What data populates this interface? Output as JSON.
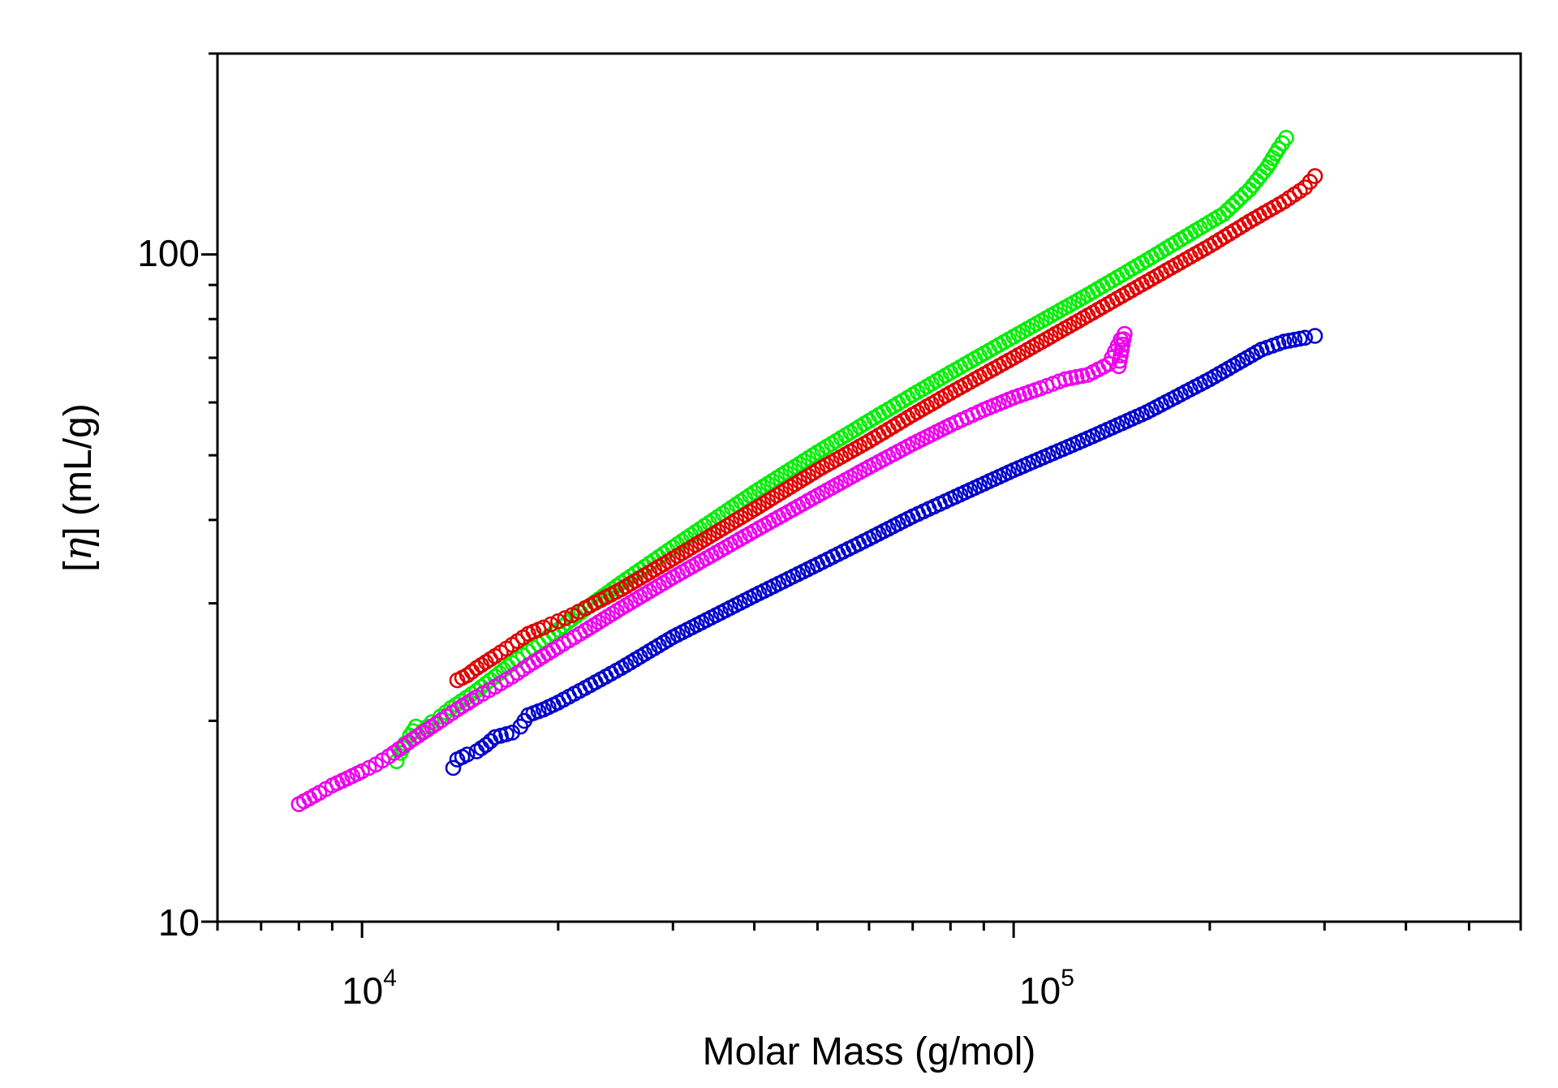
{
  "chart_data": {
    "type": "scatter",
    "x_scale": "log",
    "y_scale": "log",
    "xlim": [
      6000,
      600000
    ],
    "ylim": [
      10,
      200
    ],
    "xlabel": "Molar Mass (g/mol)",
    "ylabel_bracket_open": "[",
    "ylabel_symbol": "η",
    "ylabel_rest": "] (mL/g)",
    "x_tick_labels": [
      {
        "value": 10000,
        "base": "10",
        "exponent": "4"
      },
      {
        "value": 100000,
        "base": "10",
        "exponent": "5"
      }
    ],
    "y_tick_labels": [
      {
        "value": 10,
        "label": "10"
      },
      {
        "value": 100,
        "label": "100"
      }
    ],
    "marker": "open-circle",
    "grid": false,
    "legend": "none",
    "series": [
      {
        "color": "#00ee00",
        "points": [
          [
            11300,
            17.4
          ],
          [
            11450,
            17.9
          ],
          [
            11650,
            18.5
          ],
          [
            11850,
            19.0
          ],
          [
            12100,
            19.6
          ],
          [
            12400,
            19.3
          ],
          [
            12800,
            19.9
          ],
          [
            13200,
            20.3
          ],
          [
            13700,
            20.9
          ],
          [
            14200,
            21.4
          ],
          [
            15000,
            22.2
          ],
          [
            16000,
            23.3
          ],
          [
            17000,
            24.4
          ],
          [
            18000,
            25.4
          ],
          [
            19000,
            26.4
          ],
          [
            20000,
            27.4
          ],
          [
            22000,
            29.4
          ],
          [
            25000,
            32.2
          ],
          [
            30000,
            36.4
          ],
          [
            40000,
            44.0
          ],
          [
            50000,
            50.5
          ],
          [
            60000,
            56.3
          ],
          [
            70000,
            61.6
          ],
          [
            80000,
            66.5
          ],
          [
            100000,
            75.3
          ],
          [
            130000,
            87.0
          ],
          [
            160000,
            98.0
          ],
          [
            190000,
            108.5
          ],
          [
            210000,
            115.0
          ],
          [
            230000,
            125.0
          ],
          [
            245000,
            135.0
          ],
          [
            255000,
            144.0
          ],
          [
            262000,
            149.5
          ]
        ]
      },
      {
        "color": "#e00000",
        "points": [
          [
            14000,
            23.0
          ],
          [
            14500,
            23.4
          ],
          [
            15000,
            24.0
          ],
          [
            16000,
            25.0
          ],
          [
            17000,
            26.0
          ],
          [
            18000,
            27.0
          ],
          [
            19000,
            27.6
          ],
          [
            20000,
            28.2
          ],
          [
            21000,
            28.8
          ],
          [
            22000,
            29.5
          ],
          [
            25000,
            31.5
          ],
          [
            30000,
            35.0
          ],
          [
            40000,
            41.5
          ],
          [
            50000,
            47.5
          ],
          [
            60000,
            52.5
          ],
          [
            70000,
            57.5
          ],
          [
            80000,
            62.0
          ],
          [
            100000,
            70.0
          ],
          [
            130000,
            81.0
          ],
          [
            160000,
            91.0
          ],
          [
            200000,
            103.0
          ],
          [
            230000,
            112.0
          ],
          [
            260000,
            120.0
          ],
          [
            280000,
            126.0
          ],
          [
            290000,
            131.0
          ]
        ]
      },
      {
        "color": "#ee00ee",
        "points": [
          [
            8000,
            15.0
          ],
          [
            8300,
            15.3
          ],
          [
            8600,
            15.6
          ],
          [
            9000,
            16.0
          ],
          [
            9500,
            16.4
          ],
          [
            10000,
            16.8
          ],
          [
            10500,
            17.2
          ],
          [
            11000,
            17.7
          ],
          [
            12000,
            18.8
          ],
          [
            13000,
            19.8
          ],
          [
            14000,
            20.8
          ],
          [
            15000,
            21.7
          ],
          [
            16000,
            22.5
          ],
          [
            17000,
            23.3
          ],
          [
            18000,
            24.2
          ],
          [
            20000,
            25.8
          ],
          [
            22000,
            27.3
          ],
          [
            25000,
            29.5
          ],
          [
            30000,
            32.8
          ],
          [
            40000,
            38.5
          ],
          [
            50000,
            43.5
          ],
          [
            60000,
            48.0
          ],
          [
            70000,
            52.0
          ],
          [
            80000,
            55.5
          ],
          [
            90000,
            58.5
          ],
          [
            100000,
            61.0
          ],
          [
            110000,
            63.0
          ],
          [
            120000,
            65.0
          ],
          [
            130000,
            66.0
          ],
          [
            140000,
            68.5
          ],
          [
            143000,
            71.5
          ],
          [
            146000,
            74.5
          ],
          [
            148000,
            76.0
          ],
          [
            145000,
            68.0
          ]
        ]
      },
      {
        "color": "#0000cc",
        "points": [
          [
            13800,
            17.0
          ],
          [
            14000,
            17.5
          ],
          [
            14500,
            17.8
          ],
          [
            15000,
            18.0
          ],
          [
            15500,
            18.4
          ],
          [
            16000,
            18.9
          ],
          [
            17000,
            19.2
          ],
          [
            17500,
            19.6
          ],
          [
            18000,
            20.4
          ],
          [
            19000,
            20.8
          ],
          [
            20000,
            21.3
          ],
          [
            22000,
            22.4
          ],
          [
            25000,
            24.0
          ],
          [
            30000,
            26.7
          ],
          [
            40000,
            30.8
          ],
          [
            50000,
            34.3
          ],
          [
            60000,
            37.5
          ],
          [
            70000,
            40.5
          ],
          [
            80000,
            43.0
          ],
          [
            100000,
            47.5
          ],
          [
            130000,
            53.0
          ],
          [
            160000,
            58.0
          ],
          [
            200000,
            65.0
          ],
          [
            240000,
            72.0
          ],
          [
            260000,
            74.0
          ],
          [
            280000,
            75.0
          ],
          [
            290000,
            75.5
          ]
        ]
      }
    ]
  }
}
